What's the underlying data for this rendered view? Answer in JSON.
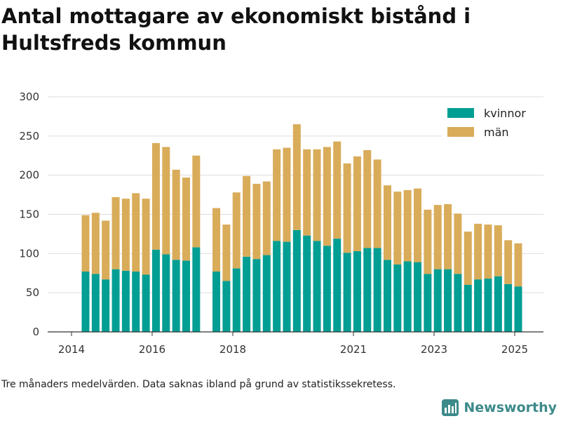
{
  "title": "Antal mottagare av ekonomiskt bistånd i Hultsfreds kommun",
  "caption": "Tre månaders medelvärden. Data saknas ibland på grund av statistikssekretess.",
  "brand": {
    "name": "Newsworthy",
    "color": "#3d8a8a"
  },
  "colors": {
    "kvinnor": "#009e93",
    "man": "#d9ac5a",
    "grid": "#dddddd",
    "axis": "#333333"
  },
  "chart_data": {
    "type": "bar",
    "stacked": true,
    "title": "Antal mottagare av ekonomiskt bistånd i Hultsfreds kommun",
    "xlabel": "",
    "ylabel": "",
    "ylim": [
      0,
      300
    ],
    "yticks": [
      0,
      50,
      100,
      150,
      200,
      250,
      300
    ],
    "xticks": [
      "2014",
      "2016",
      "2018",
      "2021",
      "2023",
      "2025"
    ],
    "legend_position": "top-right",
    "grid": true,
    "categories": [
      "2014-06",
      "2014-09",
      "2014-12",
      "2015-03",
      "2015-06",
      "2015-09",
      "2015-12",
      "2016-03",
      "2016-06",
      "2016-09",
      "2016-12",
      "2017-03",
      "2017-06",
      "2017-09",
      "2017-12",
      "2018-03",
      "2018-06",
      "2018-09",
      "2018-12",
      "2019-03",
      "2019-06",
      "2019-09",
      "2019-12",
      "2020-03",
      "2020-06",
      "2020-09",
      "2020-12",
      "2021-03",
      "2021-06",
      "2021-09",
      "2021-12",
      "2022-03",
      "2022-06",
      "2022-09",
      "2022-12",
      "2023-03",
      "2023-06",
      "2023-09",
      "2023-12",
      "2024-03",
      "2024-06",
      "2024-09",
      "2024-12",
      "2025-03"
    ],
    "missing_categories": [
      "2017-06"
    ],
    "series": [
      {
        "name": "kvinnor",
        "values": [
          77,
          74,
          67,
          80,
          78,
          77,
          73,
          105,
          99,
          92,
          91,
          108,
          null,
          77,
          65,
          81,
          96,
          93,
          98,
          116,
          115,
          130,
          123,
          116,
          110,
          119,
          101,
          103,
          107,
          107,
          92,
          86,
          90,
          89,
          74,
          80,
          80,
          74,
          60,
          67,
          68,
          71,
          61,
          58
        ]
      },
      {
        "name": "män",
        "values": [
          72,
          78,
          75,
          92,
          92,
          100,
          97,
          136,
          137,
          115,
          106,
          117,
          null,
          81,
          72,
          97,
          103,
          96,
          94,
          117,
          120,
          135,
          110,
          117,
          126,
          124,
          114,
          121,
          125,
          113,
          95,
          93,
          91,
          94,
          82,
          82,
          83,
          77,
          68,
          71,
          69,
          65,
          56,
          55
        ]
      }
    ]
  }
}
